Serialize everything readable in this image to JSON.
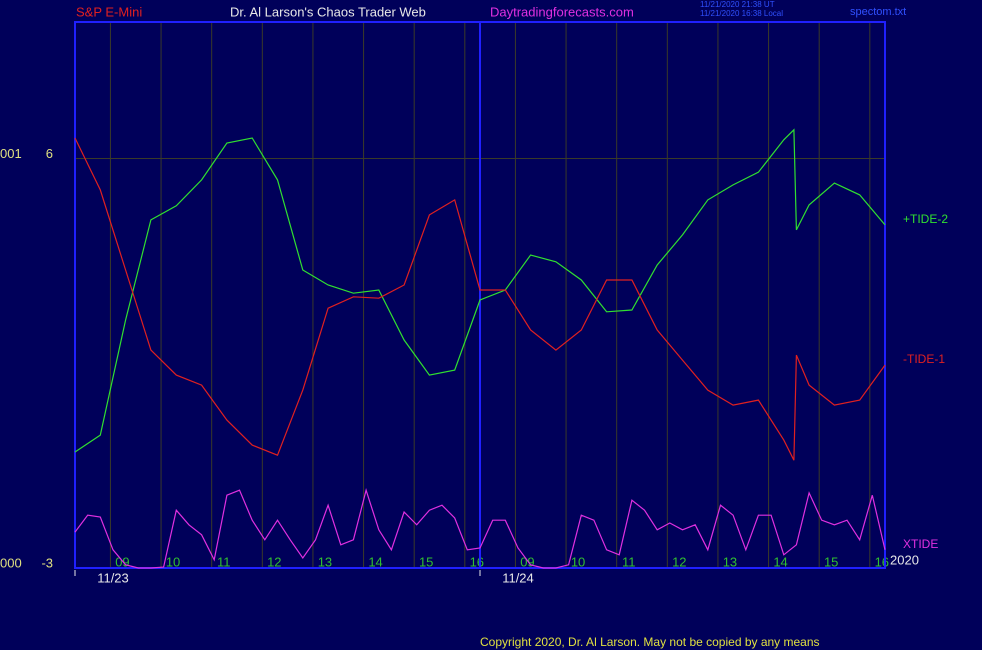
{
  "header": {
    "symbol": "S&P E-Mini",
    "title": "Dr. Al Larson's Chaos Trader Web",
    "website": "Daytradingforecasts.com",
    "timestamps": [
      "11/21/2020 21:38 UT",
      "11/21/2020 16:38 Local"
    ],
    "file": "spectom.txt"
  },
  "chart_data": {
    "type": "line",
    "ylim": [
      -3,
      9
    ],
    "yticks": [
      6,
      -3
    ],
    "y_side_labels": [
      "001",
      "000"
    ],
    "xlim": [
      0,
      16
    ],
    "xticks": [
      {
        "value": 0.7,
        "label": "09"
      },
      {
        "value": 1.7,
        "label": "10"
      },
      {
        "value": 2.7,
        "label": "11"
      },
      {
        "value": 3.7,
        "label": "12"
      },
      {
        "value": 4.7,
        "label": "13"
      },
      {
        "value": 5.7,
        "label": "14"
      },
      {
        "value": 6.7,
        "label": "15"
      },
      {
        "value": 7.7,
        "label": "16"
      },
      {
        "value": 8.7,
        "label": "09"
      },
      {
        "value": 9.7,
        "label": "10"
      },
      {
        "value": 10.7,
        "label": "11"
      },
      {
        "value": 11.7,
        "label": "12"
      },
      {
        "value": 12.7,
        "label": "13"
      },
      {
        "value": 13.7,
        "label": "14"
      },
      {
        "value": 14.7,
        "label": "15"
      },
      {
        "value": 15.7,
        "label": "16"
      }
    ],
    "date_ticks": [
      {
        "value": 0,
        "label": "11/23"
      },
      {
        "value": 8,
        "label": "11/24"
      }
    ],
    "year": "2020",
    "grid": true,
    "series": [
      {
        "name": "+TIDE-2",
        "color": "#30e030",
        "x": [
          0,
          0.5,
          1,
          1.5,
          2,
          2.5,
          3,
          3.5,
          4,
          4.5,
          5,
          5.5,
          6,
          6.5,
          7,
          7.5,
          8,
          8.5,
          9,
          9.5,
          10,
          10.5,
          11,
          11.5,
          12,
          12.5,
          13,
          13.5,
          14,
          14.2,
          14.25,
          14.5,
          15,
          15.5,
          16
        ],
        "values": [
          -0.45,
          -0.08,
          2.45,
          4.65,
          4.96,
          5.53,
          6.34,
          6.45,
          5.53,
          3.55,
          3.22,
          3.04,
          3.11,
          2.01,
          1.24,
          1.35,
          2.89,
          3.11,
          3.88,
          3.73,
          3.33,
          2.63,
          2.67,
          3.66,
          4.32,
          5.09,
          5.42,
          5.7,
          6.41,
          6.63,
          4.43,
          4.98,
          5.46,
          5.2,
          4.54
        ]
      },
      {
        "name": "-TIDE-1",
        "color": "#e02020",
        "x": [
          0,
          0.5,
          1,
          1.5,
          2,
          2.5,
          3,
          3.5,
          4,
          4.5,
          5,
          5.5,
          6,
          6.5,
          7,
          7.5,
          8,
          8.5,
          9,
          9.5,
          10,
          10.5,
          11,
          11.5,
          12,
          12.5,
          13,
          13.5,
          14,
          14.2,
          14.25,
          14.5,
          15,
          15.5,
          16
        ],
        "values": [
          6.45,
          5.31,
          3.55,
          1.79,
          1.24,
          1.02,
          0.25,
          -0.3,
          -0.52,
          0.91,
          2.71,
          2.96,
          2.93,
          3.22,
          4.76,
          5.09,
          3.11,
          3.11,
          2.23,
          1.79,
          2.23,
          3.33,
          3.33,
          2.23,
          1.57,
          0.91,
          0.58,
          0.69,
          -0.19,
          -0.63,
          1.68,
          1.02,
          0.58,
          0.69,
          1.46
        ]
      },
      {
        "name": "XTIDE",
        "color": "#e030e0",
        "x": [
          0,
          0.25,
          0.5,
          0.75,
          1,
          1.25,
          1.5,
          1.75,
          2,
          2.25,
          2.5,
          2.75,
          3,
          3.25,
          3.5,
          3.75,
          4,
          4.25,
          4.5,
          4.75,
          5,
          5.25,
          5.5,
          5.75,
          6,
          6.25,
          6.5,
          6.75,
          7,
          7.25,
          7.5,
          7.75,
          8,
          8.25,
          8.5,
          8.75,
          9,
          9.25,
          9.5,
          9.75,
          10,
          10.25,
          10.5,
          10.75,
          11,
          11.25,
          11.5,
          11.75,
          12,
          12.25,
          12.5,
          12.75,
          13,
          13.25,
          13.5,
          13.75,
          14,
          14.25,
          14.5,
          14.75,
          15,
          15.25,
          15.5,
          15.75,
          16
        ],
        "values": [
          -2.21,
          -1.84,
          -1.88,
          -2.6,
          -2.93,
          -3,
          -3,
          -2.98,
          -1.73,
          -2.05,
          -2.27,
          -2.82,
          -1.4,
          -1.29,
          -1.95,
          -2.38,
          -1.95,
          -2.38,
          -2.78,
          -2.38,
          -1.62,
          -2.49,
          -2.38,
          -1.29,
          -2.16,
          -2.6,
          -1.77,
          -2.05,
          -1.73,
          -1.62,
          -1.9,
          -2.6,
          -2.56,
          -1.95,
          -1.95,
          -2.56,
          -2.93,
          -3,
          -3,
          -2.93,
          -1.84,
          -1.95,
          -2.6,
          -2.71,
          -1.51,
          -1.73,
          -2.16,
          -2.01,
          -2.16,
          -2.05,
          -2.6,
          -1.62,
          -1.84,
          -2.6,
          -1.84,
          -1.84,
          -2.71,
          -2.49,
          -1.35,
          -1.95,
          -2.05,
          -1.95,
          -2.38,
          -1.4,
          -2.6
        ]
      }
    ]
  },
  "footer": {
    "copyright": "Copyright 2020, Dr. Al Larson. May not be copied by any means"
  }
}
